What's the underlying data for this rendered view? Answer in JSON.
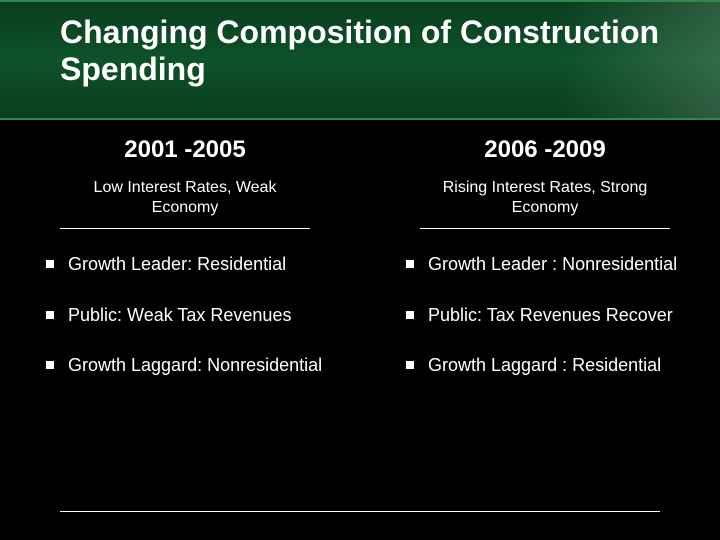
{
  "slide": {
    "title": "Changing Composition of Construction Spending",
    "background_color": "#000000",
    "band_gradient_from": "#0a3d1e",
    "band_gradient_mid": "#0d5228",
    "band_border": "#2a8a4a",
    "text_color": "#ffffff",
    "title_fontsize": 32,
    "header_fontsize": 24,
    "sub_fontsize": 16,
    "bullet_fontsize": 18
  },
  "left": {
    "header": "2001 -2005",
    "subheader": "Low Interest Rates, Weak Economy",
    "bullets": [
      "Growth Leader: Residential",
      "Public: Weak Tax Revenues",
      "Growth Laggard: Nonresidential"
    ]
  },
  "right": {
    "header": "2006 -2009",
    "subheader": "Rising Interest Rates, Strong Economy",
    "bullets": [
      "Growth Leader : Nonresidential",
      "Public: Tax Revenues Recover",
      "Growth Laggard : Residential"
    ]
  }
}
